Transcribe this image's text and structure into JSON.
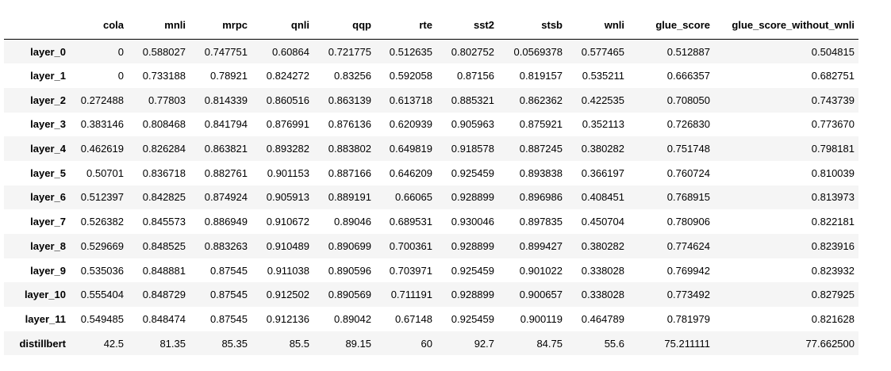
{
  "table": {
    "columns": [
      "cola",
      "mnli",
      "mrpc",
      "qnli",
      "qqp",
      "rte",
      "sst2",
      "stsb",
      "wnli",
      "glue_score",
      "glue_score_without_wnli"
    ],
    "rows": [
      {
        "index": "layer_0",
        "cells": [
          "0",
          "0.588027",
          "0.747751",
          "0.60864",
          "0.721775",
          "0.512635",
          "0.802752",
          "0.0569378",
          "0.577465",
          "0.512887",
          "0.504815"
        ]
      },
      {
        "index": "layer_1",
        "cells": [
          "0",
          "0.733188",
          "0.78921",
          "0.824272",
          "0.83256",
          "0.592058",
          "0.87156",
          "0.819157",
          "0.535211",
          "0.666357",
          "0.682751"
        ]
      },
      {
        "index": "layer_2",
        "cells": [
          "0.272488",
          "0.77803",
          "0.814339",
          "0.860516",
          "0.863139",
          "0.613718",
          "0.885321",
          "0.862362",
          "0.422535",
          "0.708050",
          "0.743739"
        ]
      },
      {
        "index": "layer_3",
        "cells": [
          "0.383146",
          "0.808468",
          "0.841794",
          "0.876991",
          "0.876136",
          "0.620939",
          "0.905963",
          "0.875921",
          "0.352113",
          "0.726830",
          "0.773670"
        ]
      },
      {
        "index": "layer_4",
        "cells": [
          "0.462619",
          "0.826284",
          "0.863821",
          "0.893282",
          "0.883802",
          "0.649819",
          "0.918578",
          "0.887245",
          "0.380282",
          "0.751748",
          "0.798181"
        ]
      },
      {
        "index": "layer_5",
        "cells": [
          "0.50701",
          "0.836718",
          "0.882761",
          "0.901153",
          "0.887166",
          "0.646209",
          "0.925459",
          "0.893838",
          "0.366197",
          "0.760724",
          "0.810039"
        ]
      },
      {
        "index": "layer_6",
        "cells": [
          "0.512397",
          "0.842825",
          "0.874924",
          "0.905913",
          "0.889191",
          "0.66065",
          "0.928899",
          "0.896986",
          "0.408451",
          "0.768915",
          "0.813973"
        ]
      },
      {
        "index": "layer_7",
        "cells": [
          "0.526382",
          "0.845573",
          "0.886949",
          "0.910672",
          "0.89046",
          "0.689531",
          "0.930046",
          "0.897835",
          "0.450704",
          "0.780906",
          "0.822181"
        ]
      },
      {
        "index": "layer_8",
        "cells": [
          "0.529669",
          "0.848525",
          "0.883263",
          "0.910489",
          "0.890699",
          "0.700361",
          "0.928899",
          "0.899427",
          "0.380282",
          "0.774624",
          "0.823916"
        ]
      },
      {
        "index": "layer_9",
        "cells": [
          "0.535036",
          "0.848881",
          "0.87545",
          "0.911038",
          "0.890596",
          "0.703971",
          "0.925459",
          "0.901022",
          "0.338028",
          "0.769942",
          "0.823932"
        ]
      },
      {
        "index": "layer_10",
        "cells": [
          "0.555404",
          "0.848729",
          "0.87545",
          "0.912502",
          "0.890569",
          "0.711191",
          "0.928899",
          "0.900657",
          "0.338028",
          "0.773492",
          "0.827925"
        ]
      },
      {
        "index": "layer_11",
        "cells": [
          "0.549485",
          "0.848474",
          "0.87545",
          "0.912136",
          "0.89042",
          "0.67148",
          "0.925459",
          "0.900119",
          "0.464789",
          "0.781979",
          "0.821628"
        ]
      },
      {
        "index": "distillbert",
        "cells": [
          "42.5",
          "81.35",
          "85.35",
          "85.5",
          "89.15",
          "60",
          "92.7",
          "84.75",
          "55.6",
          "75.211111",
          "77.662500"
        ]
      }
    ]
  }
}
